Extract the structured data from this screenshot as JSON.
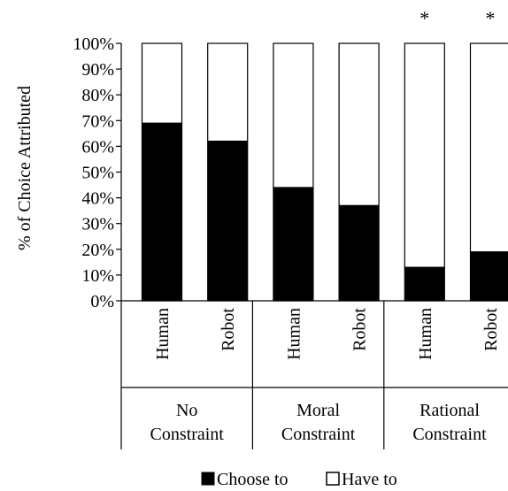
{
  "chart_data": {
    "type": "bar",
    "stacked": true,
    "ylabel": "% of Choice Attributed",
    "ylim": [
      0,
      100
    ],
    "yticks": [
      "0%",
      "10%",
      "20%",
      "30%",
      "40%",
      "50%",
      "60%",
      "70%",
      "80%",
      "90%",
      "100%"
    ],
    "groups": [
      {
        "label_lines": [
          "No",
          "Constraint"
        ],
        "categories": [
          "Human",
          "Robot"
        ]
      },
      {
        "label_lines": [
          "Moral",
          "Constraint"
        ],
        "categories": [
          "Human",
          "Robot"
        ]
      },
      {
        "label_lines": [
          "Rational",
          "Constraint"
        ],
        "categories": [
          "Human",
          "Robot"
        ]
      }
    ],
    "categories": [
      "Human",
      "Robot",
      "Human",
      "Robot",
      "Human",
      "Robot"
    ],
    "series": [
      {
        "name": "Choose to",
        "color": "#000000",
        "values": [
          69,
          62,
          44,
          37,
          13,
          19
        ]
      },
      {
        "name": "Have to",
        "color": "#ffffff",
        "values": [
          31,
          38,
          56,
          63,
          87,
          81
        ]
      }
    ],
    "significance_markers": [
      "",
      "",
      "",
      "",
      "*",
      "*"
    ],
    "legend": {
      "position": "bottom",
      "items": [
        "Choose to",
        "Have to"
      ]
    },
    "grid": false
  }
}
